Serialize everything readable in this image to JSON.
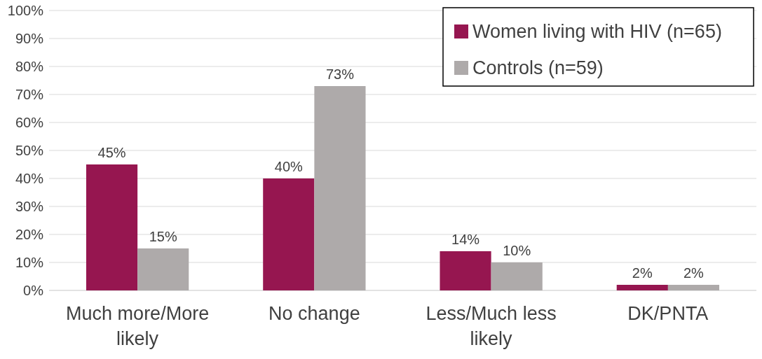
{
  "chart_data": {
    "type": "bar",
    "categories": [
      "Much more/More likely",
      "No change",
      "Less/Much less likely",
      "DK/PNTA"
    ],
    "series": [
      {
        "name": "Women living with HIV (n=65)",
        "color": "#961650",
        "values": [
          45,
          40,
          14,
          2
        ],
        "value_labels": [
          "45%",
          "40%",
          "14%",
          "2%"
        ]
      },
      {
        "name": "Controls (n=59)",
        "color": "#aeaaaa",
        "values": [
          15,
          73,
          10,
          2
        ],
        "value_labels": [
          "15%",
          "73%",
          "10%",
          "2%"
        ]
      }
    ],
    "ylim": [
      0,
      100
    ],
    "yticks": [
      {
        "value": 0,
        "label": "0%"
      },
      {
        "value": 10,
        "label": "10%"
      },
      {
        "value": 20,
        "label": "20%"
      },
      {
        "value": 30,
        "label": "30%"
      },
      {
        "value": 40,
        "label": "40%"
      },
      {
        "value": 50,
        "label": "50%"
      },
      {
        "value": 60,
        "label": "60%"
      },
      {
        "value": 70,
        "label": "70%"
      },
      {
        "value": 80,
        "label": "80%"
      },
      {
        "value": 90,
        "label": "90%"
      },
      {
        "value": 100,
        "label": "100%"
      }
    ],
    "grid": "y",
    "legend": "top right"
  }
}
